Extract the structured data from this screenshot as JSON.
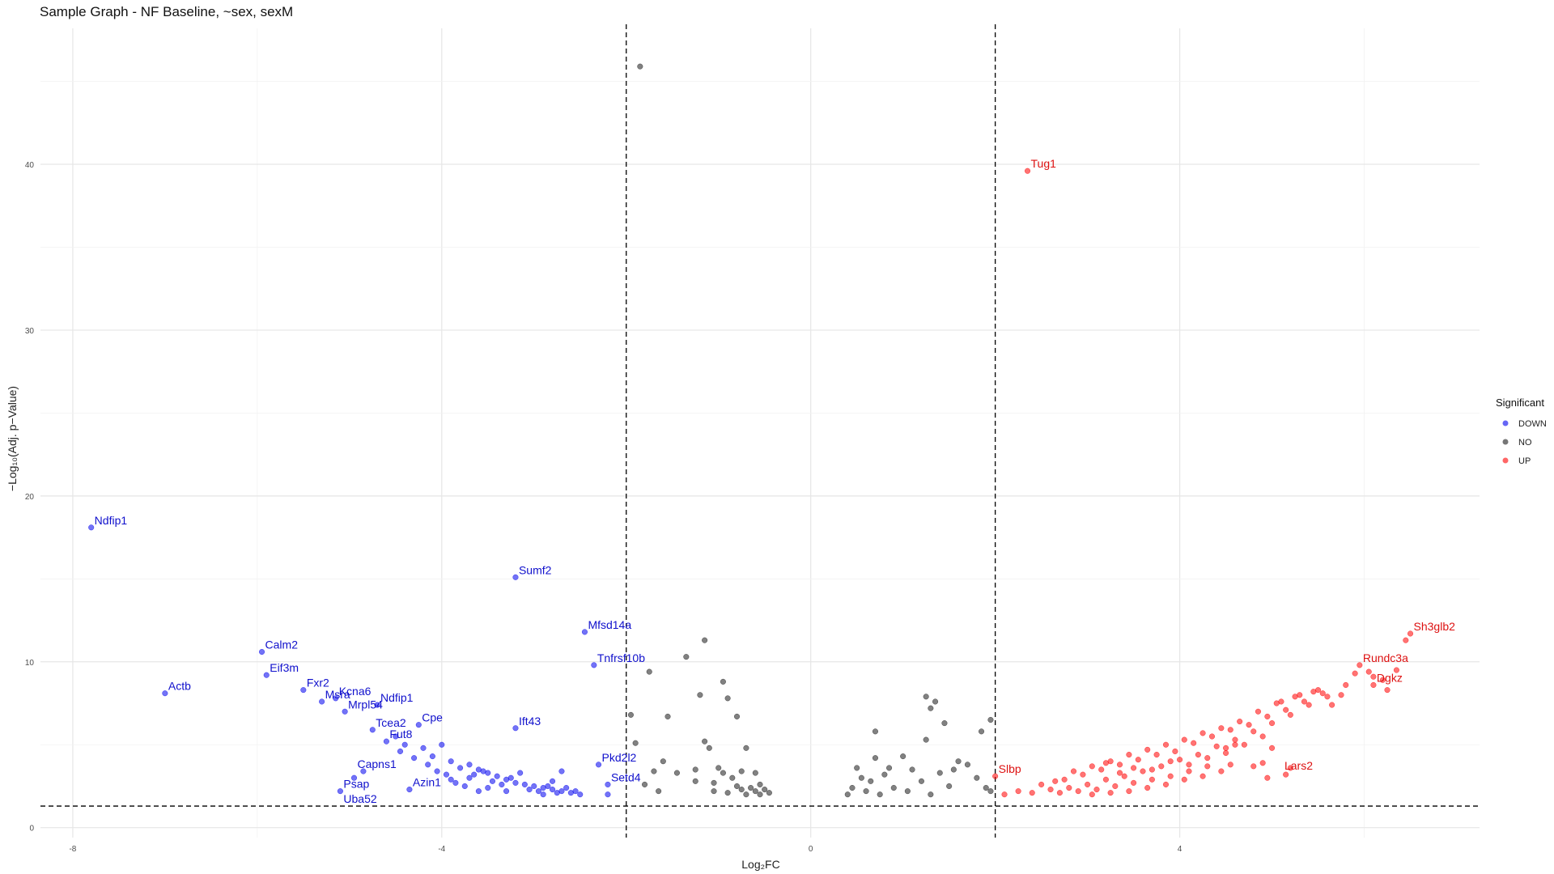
{
  "chart_data": {
    "type": "scatter",
    "title": "Sample Graph - NF Baseline, ~sex, sexM",
    "xlabel": "Log₂FC",
    "ylabel": "−Log₁₀(Adj. p−Value)",
    "xlim": [
      -8.35,
      7.25
    ],
    "ylim": [
      -0.6,
      48.2
    ],
    "x_ticks": [
      -8,
      -4,
      0,
      4
    ],
    "x_tick_labels": [
      "-8",
      "-4",
      "0",
      "4"
    ],
    "y_ticks": [
      0,
      10,
      20,
      30,
      40
    ],
    "y_tick_labels": [
      "0",
      "10",
      "20",
      "30",
      "40"
    ],
    "grid": true,
    "thresholds": {
      "log2fc": [
        -2,
        2
      ],
      "neg_log10_p": 1.3
    },
    "legend": {
      "title": "Significant",
      "placement": "right",
      "entries": [
        {
          "name": "DOWN",
          "color": "#0000ee"
        },
        {
          "name": "NO",
          "color": "#1a1a1a"
        },
        {
          "name": "UP",
          "color": "#ff0000"
        }
      ]
    },
    "series": [
      {
        "name": "DOWN",
        "color": "#0000ee",
        "points": [
          [
            -7.8,
            18.1
          ],
          [
            -5.95,
            10.6
          ],
          [
            -7.0,
            8.1
          ],
          [
            -5.9,
            9.2
          ],
          [
            -5.5,
            8.3
          ],
          [
            -5.3,
            7.6
          ],
          [
            -5.15,
            7.8
          ],
          [
            -5.05,
            7.0
          ],
          [
            -4.7,
            7.4
          ],
          [
            -4.75,
            5.9
          ],
          [
            -4.25,
            6.2
          ],
          [
            -3.2,
            15.1
          ],
          [
            -2.45,
            11.8
          ],
          [
            -2.35,
            9.8
          ],
          [
            -3.2,
            6.0
          ],
          [
            -2.3,
            3.8
          ],
          [
            -2.2,
            2.6
          ],
          [
            -4.95,
            3.0
          ],
          [
            -4.85,
            3.4
          ],
          [
            -5.1,
            2.2
          ],
          [
            -4.35,
            2.3
          ],
          [
            -4.6,
            5.2
          ],
          [
            -4.4,
            5.0
          ],
          [
            -4.2,
            4.8
          ],
          [
            -4.0,
            5.0
          ],
          [
            -4.1,
            4.3
          ],
          [
            -3.9,
            4.0
          ],
          [
            -3.7,
            3.8
          ],
          [
            -3.6,
            3.5
          ],
          [
            -3.5,
            3.3
          ],
          [
            -3.4,
            3.1
          ],
          [
            -3.3,
            2.9
          ],
          [
            -3.2,
            2.7
          ],
          [
            -3.1,
            2.6
          ],
          [
            -3.0,
            2.5
          ],
          [
            -2.9,
            2.4
          ],
          [
            -2.8,
            2.3
          ],
          [
            -2.7,
            2.2
          ],
          [
            -2.6,
            2.1
          ],
          [
            -3.8,
            3.6
          ],
          [
            -3.65,
            3.2
          ],
          [
            -3.55,
            3.4
          ],
          [
            -3.45,
            2.8
          ],
          [
            -3.25,
            3.0
          ],
          [
            -3.05,
            2.3
          ],
          [
            -2.85,
            2.5
          ],
          [
            -2.75,
            2.1
          ],
          [
            -2.65,
            2.4
          ],
          [
            -3.9,
            2.9
          ],
          [
            -3.75,
            2.5
          ],
          [
            -3.6,
            2.2
          ],
          [
            -4.05,
            3.4
          ],
          [
            -4.15,
            3.8
          ],
          [
            -3.95,
            3.2
          ],
          [
            -3.85,
            2.7
          ],
          [
            -3.7,
            3.0
          ],
          [
            -2.55,
            2.2
          ],
          [
            -2.5,
            2.0
          ],
          [
            -3.35,
            2.6
          ],
          [
            -3.15,
            3.3
          ],
          [
            -2.95,
            2.2
          ],
          [
            -2.8,
            2.8
          ],
          [
            -4.45,
            4.6
          ],
          [
            -4.5,
            5.5
          ],
          [
            -4.3,
            4.2
          ],
          [
            -3.5,
            2.4
          ],
          [
            -3.3,
            2.2
          ],
          [
            -2.7,
            3.4
          ],
          [
            -2.9,
            2.0
          ],
          [
            -2.2,
            2.0
          ]
        ]
      },
      {
        "name": "NO",
        "color": "#1a1a1a",
        "points": [
          [
            -1.85,
            45.9
          ],
          [
            -1.15,
            11.3
          ],
          [
            -1.35,
            10.3
          ],
          [
            -1.75,
            9.4
          ],
          [
            -0.95,
            8.8
          ],
          [
            -0.9,
            7.8
          ],
          [
            -1.2,
            8.0
          ],
          [
            -0.8,
            6.7
          ],
          [
            -1.55,
            6.7
          ],
          [
            -1.95,
            6.8
          ],
          [
            -1.15,
            5.2
          ],
          [
            -0.7,
            4.8
          ],
          [
            -1.9,
            5.1
          ],
          [
            -1.6,
            4.0
          ],
          [
            -1.0,
            3.6
          ],
          [
            -0.75,
            3.4
          ],
          [
            -0.6,
            3.3
          ],
          [
            -0.5,
            2.3
          ],
          [
            -0.45,
            2.1
          ],
          [
            -0.55,
            2.6
          ],
          [
            -0.65,
            2.4
          ],
          [
            -0.85,
            3.0
          ],
          [
            -1.05,
            2.7
          ],
          [
            -1.25,
            3.5
          ],
          [
            -1.45,
            3.3
          ],
          [
            -1.7,
            3.4
          ],
          [
            -1.05,
            2.2
          ],
          [
            -0.9,
            2.1
          ],
          [
            -0.7,
            2.0
          ],
          [
            -0.55,
            2.0
          ],
          [
            -1.25,
            2.8
          ],
          [
            -1.8,
            2.6
          ],
          [
            -1.65,
            2.2
          ],
          [
            -0.8,
            2.5
          ],
          [
            -0.6,
            2.2
          ],
          [
            -1.1,
            4.8
          ],
          [
            -0.95,
            3.3
          ],
          [
            -0.75,
            2.3
          ],
          [
            1.25,
            7.9
          ],
          [
            1.3,
            7.2
          ],
          [
            1.35,
            7.6
          ],
          [
            1.45,
            6.3
          ],
          [
            1.95,
            6.5
          ],
          [
            1.85,
            5.8
          ],
          [
            0.7,
            5.8
          ],
          [
            1.25,
            5.3
          ],
          [
            1.0,
            4.3
          ],
          [
            1.6,
            4.0
          ],
          [
            0.7,
            4.2
          ],
          [
            0.5,
            3.6
          ],
          [
            0.4,
            2.0
          ],
          [
            0.45,
            2.4
          ],
          [
            0.55,
            3.0
          ],
          [
            0.65,
            2.8
          ],
          [
            0.8,
            3.2
          ],
          [
            0.9,
            2.4
          ],
          [
            1.1,
            3.5
          ],
          [
            1.2,
            2.8
          ],
          [
            1.4,
            3.3
          ],
          [
            1.5,
            2.5
          ],
          [
            1.7,
            3.8
          ],
          [
            1.8,
            3.0
          ],
          [
            1.9,
            2.4
          ],
          [
            1.95,
            2.2
          ],
          [
            0.6,
            2.2
          ],
          [
            0.75,
            2.0
          ],
          [
            1.05,
            2.2
          ],
          [
            1.3,
            2.0
          ],
          [
            1.55,
            3.5
          ],
          [
            0.85,
            3.6
          ]
        ]
      },
      {
        "name": "UP",
        "color": "#ff0000",
        "points": [
          [
            2.35,
            39.6
          ],
          [
            6.5,
            11.7
          ],
          [
            6.45,
            11.3
          ],
          [
            5.95,
            9.8
          ],
          [
            6.05,
            9.4
          ],
          [
            6.1,
            9.1
          ],
          [
            6.1,
            8.6
          ],
          [
            5.5,
            8.3
          ],
          [
            5.3,
            8.0
          ],
          [
            5.1,
            7.6
          ],
          [
            5.0,
            4.8
          ],
          [
            4.9,
            3.9
          ],
          [
            4.8,
            3.7
          ],
          [
            5.2,
            3.6
          ],
          [
            5.15,
            3.2
          ],
          [
            4.95,
            3.0
          ],
          [
            4.55,
            3.8
          ],
          [
            4.6,
            5.0
          ],
          [
            4.5,
            4.8
          ],
          [
            2.0,
            3.1
          ],
          [
            2.1,
            2.0
          ],
          [
            2.25,
            2.2
          ],
          [
            2.4,
            2.1
          ],
          [
            2.6,
            2.3
          ],
          [
            2.8,
            2.4
          ],
          [
            3.0,
            2.6
          ],
          [
            3.2,
            2.9
          ],
          [
            3.4,
            3.1
          ],
          [
            3.6,
            3.4
          ],
          [
            3.8,
            3.7
          ],
          [
            4.0,
            4.1
          ],
          [
            4.2,
            4.4
          ],
          [
            4.4,
            4.9
          ],
          [
            4.6,
            5.3
          ],
          [
            4.8,
            5.8
          ],
          [
            5.0,
            6.3
          ],
          [
            5.2,
            6.8
          ],
          [
            5.4,
            7.4
          ],
          [
            5.6,
            7.9
          ],
          [
            5.8,
            8.6
          ],
          [
            2.7,
            2.1
          ],
          [
            2.9,
            2.2
          ],
          [
            3.1,
            2.3
          ],
          [
            3.3,
            2.5
          ],
          [
            3.5,
            2.7
          ],
          [
            3.7,
            2.9
          ],
          [
            3.9,
            3.1
          ],
          [
            4.1,
            3.4
          ],
          [
            4.3,
            3.7
          ],
          [
            2.75,
            2.9
          ],
          [
            2.95,
            3.2
          ],
          [
            3.15,
            3.5
          ],
          [
            3.35,
            3.8
          ],
          [
            3.55,
            4.1
          ],
          [
            3.75,
            4.4
          ],
          [
            3.95,
            4.6
          ],
          [
            4.15,
            5.1
          ],
          [
            4.35,
            5.5
          ],
          [
            4.55,
            5.9
          ],
          [
            4.75,
            6.2
          ],
          [
            4.95,
            6.7
          ],
          [
            5.15,
            7.1
          ],
          [
            5.35,
            7.6
          ],
          [
            5.55,
            8.1
          ],
          [
            3.05,
            2.0
          ],
          [
            3.25,
            2.1
          ],
          [
            3.45,
            2.2
          ],
          [
            3.65,
            2.4
          ],
          [
            3.85,
            2.6
          ],
          [
            4.05,
            2.9
          ],
          [
            4.25,
            3.1
          ],
          [
            4.45,
            3.4
          ],
          [
            2.5,
            2.6
          ],
          [
            2.65,
            2.8
          ],
          [
            2.85,
            3.4
          ],
          [
            3.05,
            3.7
          ],
          [
            3.25,
            4.0
          ],
          [
            3.45,
            4.4
          ],
          [
            3.65,
            4.7
          ],
          [
            3.85,
            5.0
          ],
          [
            4.05,
            5.3
          ],
          [
            4.25,
            5.7
          ],
          [
            4.45,
            6.0
          ],
          [
            4.65,
            6.4
          ],
          [
            4.85,
            7.0
          ],
          [
            5.05,
            7.5
          ],
          [
            5.25,
            7.9
          ],
          [
            5.45,
            8.2
          ],
          [
            5.65,
            7.4
          ],
          [
            5.75,
            8.0
          ],
          [
            5.9,
            9.3
          ],
          [
            6.2,
            8.9
          ],
          [
            6.25,
            8.3
          ],
          [
            6.35,
            9.5
          ],
          [
            3.2,
            3.9
          ],
          [
            3.35,
            3.3
          ],
          [
            3.5,
            3.6
          ],
          [
            3.7,
            3.5
          ],
          [
            3.9,
            4.0
          ],
          [
            4.1,
            3.8
          ],
          [
            4.3,
            4.2
          ],
          [
            4.5,
            4.5
          ],
          [
            4.7,
            5.0
          ],
          [
            4.9,
            5.5
          ]
        ]
      }
    ],
    "annotations": [
      {
        "text": "Ndfip1",
        "x": -7.8,
        "y": 18.1,
        "series": "DOWN"
      },
      {
        "text": "Calm2",
        "x": -5.95,
        "y": 10.6,
        "series": "DOWN"
      },
      {
        "text": "Eif3m",
        "x": -5.9,
        "y": 9.2,
        "series": "DOWN"
      },
      {
        "text": "Actb",
        "x": -7.0,
        "y": 8.1,
        "series": "DOWN"
      },
      {
        "text": "Fxr2",
        "x": -5.5,
        "y": 8.3,
        "series": "DOWN"
      },
      {
        "text": "Msra",
        "x": -5.3,
        "y": 7.6,
        "series": "DOWN"
      },
      {
        "text": "Kcna6",
        "x": -5.15,
        "y": 7.8,
        "series": "DOWN"
      },
      {
        "text": "Mrpl54",
        "x": -5.05,
        "y": 7.0,
        "series": "DOWN"
      },
      {
        "text": "Ndfip1",
        "x": -4.7,
        "y": 7.4,
        "series": "DOWN"
      },
      {
        "text": "Tcea2",
        "x": -4.75,
        "y": 5.9,
        "series": "DOWN"
      },
      {
        "text": "Fut8",
        "x": -4.6,
        "y": 5.2,
        "series": "DOWN"
      },
      {
        "text": "Cpe",
        "x": -4.25,
        "y": 6.2,
        "series": "DOWN"
      },
      {
        "text": "Capns1",
        "x": -4.95,
        "y": 3.4,
        "series": "DOWN"
      },
      {
        "text": "Psap",
        "x": -5.1,
        "y": 2.2,
        "series": "DOWN"
      },
      {
        "text": "Uba52",
        "x": -5.1,
        "y": 1.3,
        "series": "DOWN"
      },
      {
        "text": "Azin1",
        "x": -4.35,
        "y": 2.3,
        "series": "DOWN"
      },
      {
        "text": "Sumf2",
        "x": -3.2,
        "y": 15.1,
        "series": "DOWN"
      },
      {
        "text": "Mfsd14a",
        "x": -2.45,
        "y": 11.8,
        "series": "DOWN"
      },
      {
        "text": "Tnfrsf10b",
        "x": -2.35,
        "y": 9.8,
        "series": "DOWN"
      },
      {
        "text": "Ift43",
        "x": -3.2,
        "y": 6.0,
        "series": "DOWN"
      },
      {
        "text": "Pkd2l2",
        "x": -2.3,
        "y": 3.8,
        "series": "DOWN"
      },
      {
        "text": "Setd4",
        "x": -2.2,
        "y": 2.6,
        "series": "DOWN"
      },
      {
        "text": "Tug1",
        "x": 2.35,
        "y": 39.6,
        "series": "UP"
      },
      {
        "text": "Slbp",
        "x": 2.0,
        "y": 3.1,
        "series": "UP"
      },
      {
        "text": "Sh3glb2",
        "x": 6.5,
        "y": 11.7,
        "series": "UP"
      },
      {
        "text": "Rundc3a",
        "x": 5.95,
        "y": 9.8,
        "series": "UP"
      },
      {
        "text": "Dgkz",
        "x": 6.1,
        "y": 8.6,
        "series": "UP"
      },
      {
        "text": "Lars2",
        "x": 5.1,
        "y": 3.3,
        "series": "UP"
      }
    ]
  }
}
